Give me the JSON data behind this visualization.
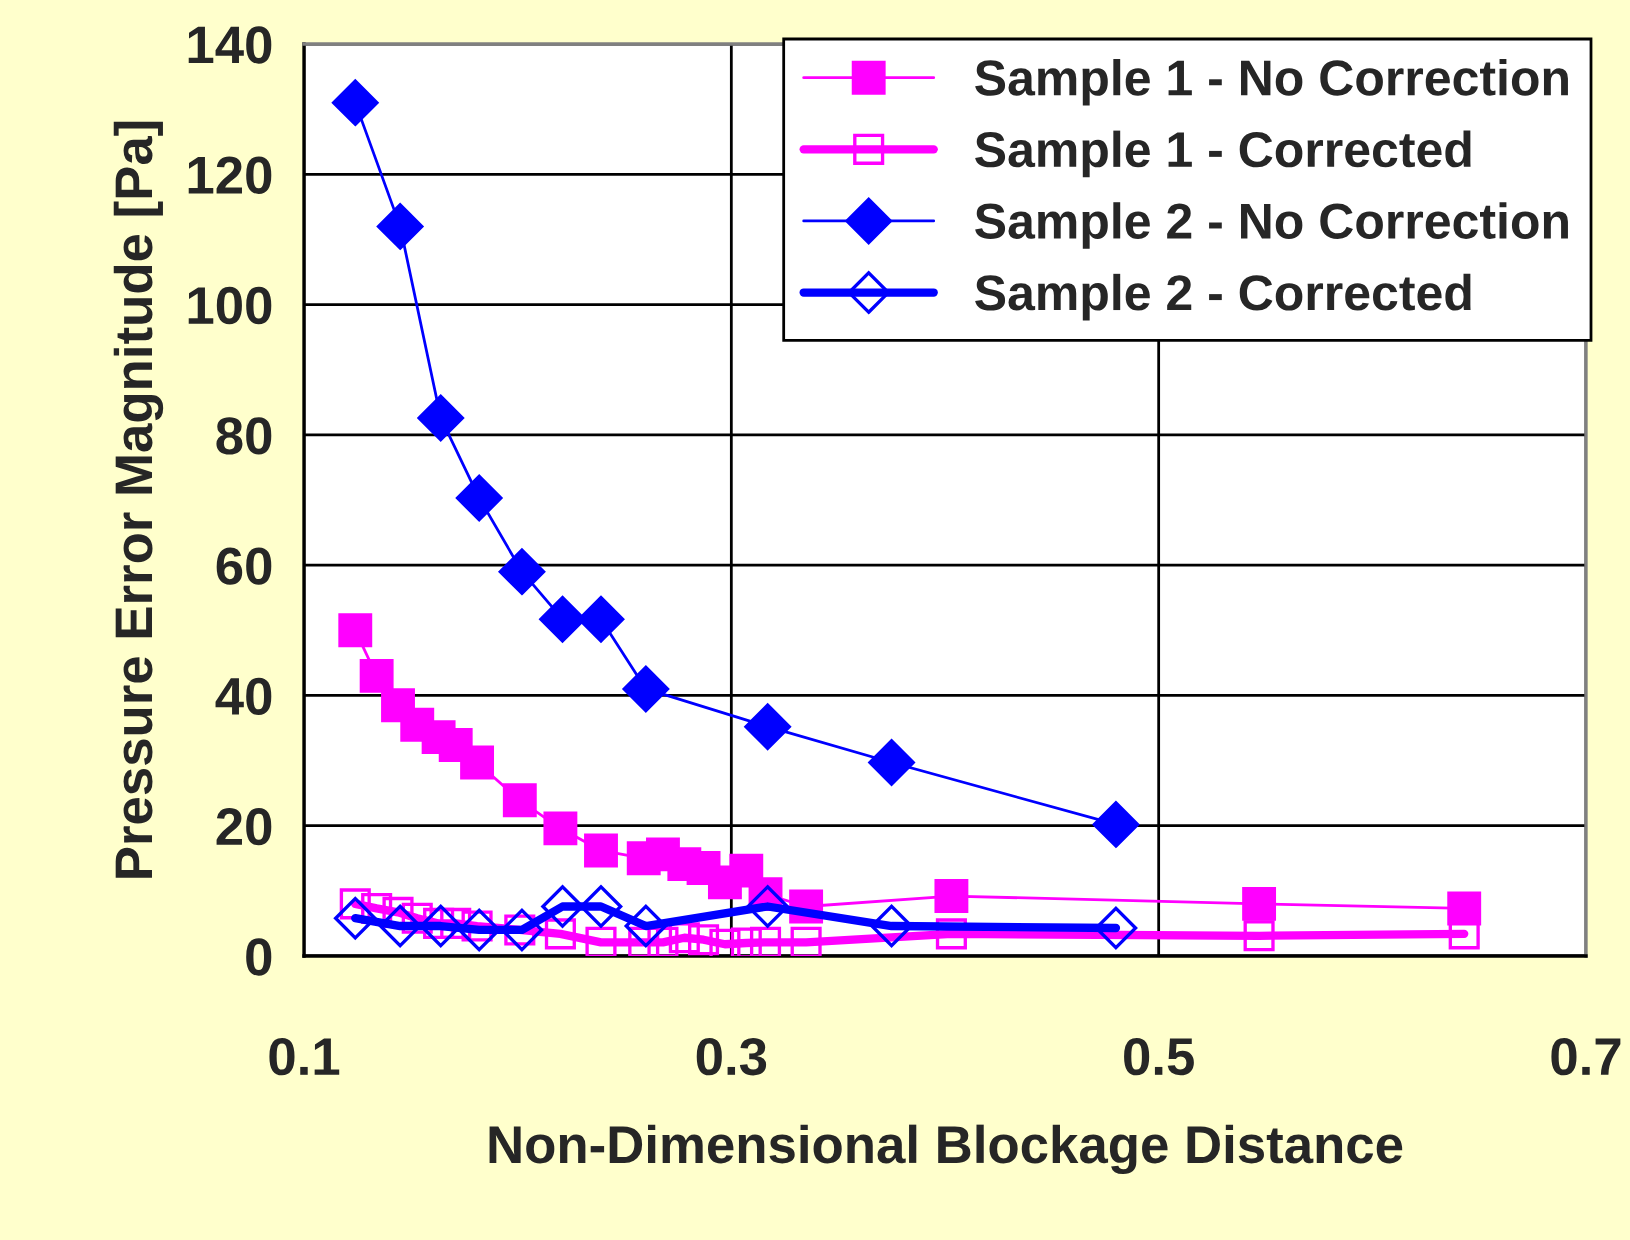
{
  "chart_data": {
    "type": "line",
    "xlabel": "Non-Dimensional Blockage Distance",
    "ylabel": "Pressure Error Magnitude [Pa]",
    "xlim": [
      0.1,
      0.7
    ],
    "xticks": [
      0.1,
      0.3,
      0.5,
      0.7
    ],
    "ylim": [
      0,
      140
    ],
    "yticks": [
      0,
      20,
      40,
      60,
      80,
      100,
      120,
      140
    ],
    "grid": true,
    "legend": "top right",
    "series": [
      {
        "name": "Sample 1 - No Correction",
        "color": "#ff00ff",
        "marker": "square",
        "x": [
          0.124,
          0.134,
          0.144,
          0.153,
          0.163,
          0.171,
          0.181,
          0.201,
          0.22,
          0.239,
          0.259,
          0.268,
          0.278,
          0.287,
          0.297,
          0.307,
          0.316,
          0.335,
          0.403,
          0.547,
          0.643
        ],
        "values": [
          50,
          43,
          38.5,
          35.5,
          33.6,
          32.4,
          29.7,
          23.9,
          19.6,
          16.2,
          15,
          15.6,
          14.1,
          13.5,
          11.3,
          13.1,
          9.5,
          7.6,
          9.2,
          8,
          7.3
        ]
      },
      {
        "name": "Sample 1 - Corrected",
        "color": "#ff00ff",
        "marker": "square",
        "x": [
          0.124,
          0.134,
          0.144,
          0.153,
          0.163,
          0.171,
          0.181,
          0.201,
          0.22,
          0.239,
          0.259,
          0.268,
          0.278,
          0.287,
          0.297,
          0.307,
          0.316,
          0.335,
          0.403,
          0.547,
          0.643
        ],
        "values": [
          8,
          7.3,
          6.7,
          5.8,
          5,
          5,
          4.6,
          4,
          3.4,
          2.1,
          2.1,
          2.1,
          2.8,
          2.5,
          1.8,
          2,
          2.1,
          2.1,
          3.4,
          3.1,
          3.4
        ]
      },
      {
        "name": "Sample 2 - No Correction",
        "color": "#0000ff",
        "marker": "diamond",
        "x": [
          0.124,
          0.145,
          0.164,
          0.182,
          0.202,
          0.221,
          0.239,
          0.26,
          0.317,
          0.375,
          0.48
        ],
        "values": [
          131,
          112,
          82.6,
          70.3,
          59,
          51.7,
          51.7,
          41,
          35.2,
          29.7,
          20.2
        ]
      },
      {
        "name": "Sample 2 - Corrected",
        "color": "#0000ff",
        "marker": "diamond",
        "x": [
          0.124,
          0.145,
          0.164,
          0.182,
          0.202,
          0.221,
          0.239,
          0.26,
          0.317,
          0.375,
          0.48
        ],
        "values": [
          5.8,
          4.6,
          4.6,
          4,
          4,
          7.6,
          7.6,
          4.6,
          7.6,
          4.6,
          4.3
        ]
      }
    ]
  }
}
